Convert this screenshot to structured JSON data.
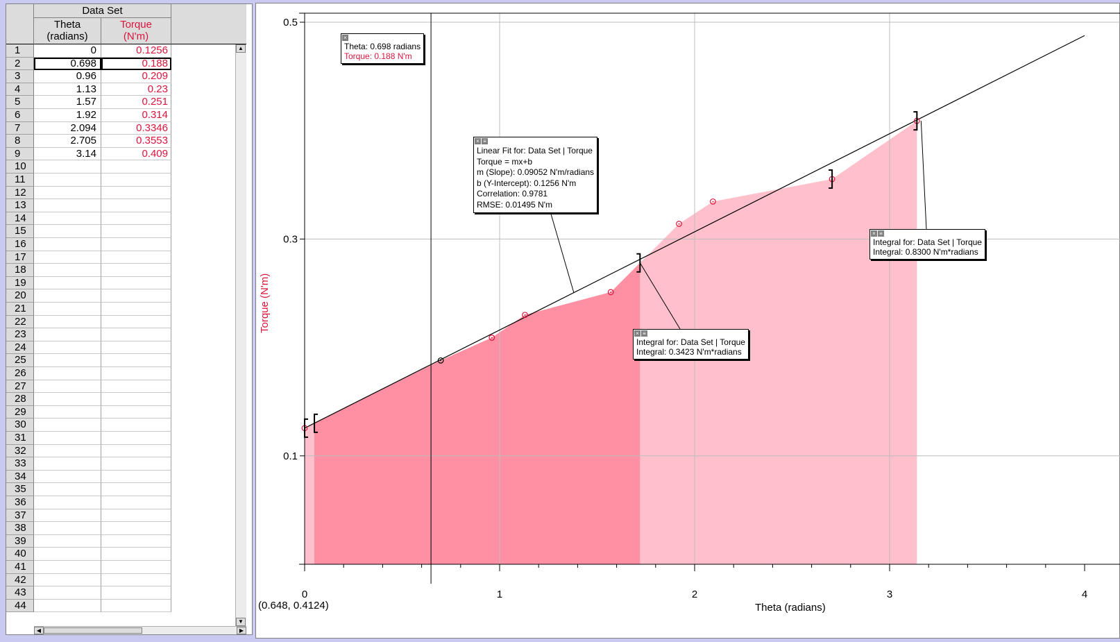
{
  "table": {
    "title": "Data Set",
    "col_theta": [
      "Theta",
      "(radians)"
    ],
    "col_torque": [
      "Torque",
      "(N'm)"
    ],
    "selected_row": 2,
    "theta": [
      "0",
      "0.698",
      "0.96",
      "1.13",
      "1.57",
      "1.92",
      "2.094",
      "2.705",
      "3.14"
    ],
    "torque": [
      "0.1256",
      "0.188",
      "0.209",
      "0.23",
      "0.251",
      "0.314",
      "0.3346",
      "0.3553",
      "0.409"
    ],
    "row_numbers": [
      "1",
      "2",
      "3",
      "4",
      "5",
      "6",
      "7",
      "8",
      "9",
      "10",
      "11",
      "12",
      "13",
      "14",
      "15",
      "16",
      "17",
      "18",
      "19",
      "20",
      "21",
      "22",
      "23",
      "24",
      "25",
      "26",
      "27",
      "28",
      "29",
      "30",
      "31",
      "32",
      "33",
      "34",
      "35",
      "36",
      "37",
      "38",
      "39",
      "40",
      "41",
      "42",
      "43",
      "44"
    ]
  },
  "readout": "(0.648, 0.4124)",
  "examine_note": {
    "line1": "Theta: 0.698 radians",
    "line2": "Torque: 0.188 N'm"
  },
  "fit_note": {
    "line1": "Linear Fit for: Data Set | Torque",
    "line2": "Torque = mx+b",
    "line3": "m (Slope): 0.09052 N'm/radians",
    "line4": "b (Y-Intercept): 0.1256 N'm",
    "line5": "Correlation: 0.9781",
    "line6": "RMSE: 0.01495 N'm"
  },
  "integral_note_1": {
    "line1": "Integral for: Data Set | Torque",
    "line2": "Integral: 0.3423 N'm*radians"
  },
  "integral_note_2": {
    "line1": "Integral for: Data Set | Torque",
    "line2": "Integral: 0.8300 N'm*radians"
  },
  "colors": {
    "torque": "#dc143c",
    "integral_dark": "#ff8fa3",
    "integral_light": "#ffc0cb",
    "panel_bg": "#c9c9f2"
  },
  "chart_data": {
    "type": "scatter",
    "xlabel": "Theta (radians)",
    "ylabel": "Torque (N'm)",
    "xlim": [
      0,
      4
    ],
    "ylim": [
      0,
      0.5
    ],
    "x_ticks": [
      "0",
      "1",
      "2",
      "3",
      "4"
    ],
    "y_ticks": [
      "0.1",
      "0.3",
      "0.5"
    ],
    "y_tick_values": [
      0.1,
      0.3,
      0.5
    ],
    "grid": true,
    "series": [
      {
        "name": "Torque",
        "x": [
          0,
          0.698,
          0.96,
          1.13,
          1.57,
          1.92,
          2.094,
          2.705,
          3.14
        ],
        "y": [
          0.1256,
          0.188,
          0.209,
          0.23,
          0.251,
          0.314,
          0.3346,
          0.3553,
          0.409
        ]
      }
    ],
    "linear_fit": {
      "m": 0.09052,
      "b": 0.1256,
      "x_range": [
        0,
        4
      ]
    },
    "integral_regions": [
      {
        "x_range": [
          0.05,
          1.72
        ],
        "value": 0.3423
      },
      {
        "x_range": [
          0,
          3.14
        ],
        "value": 0.83
      }
    ],
    "examine_x": 0.648,
    "selected_point_index": 1
  }
}
